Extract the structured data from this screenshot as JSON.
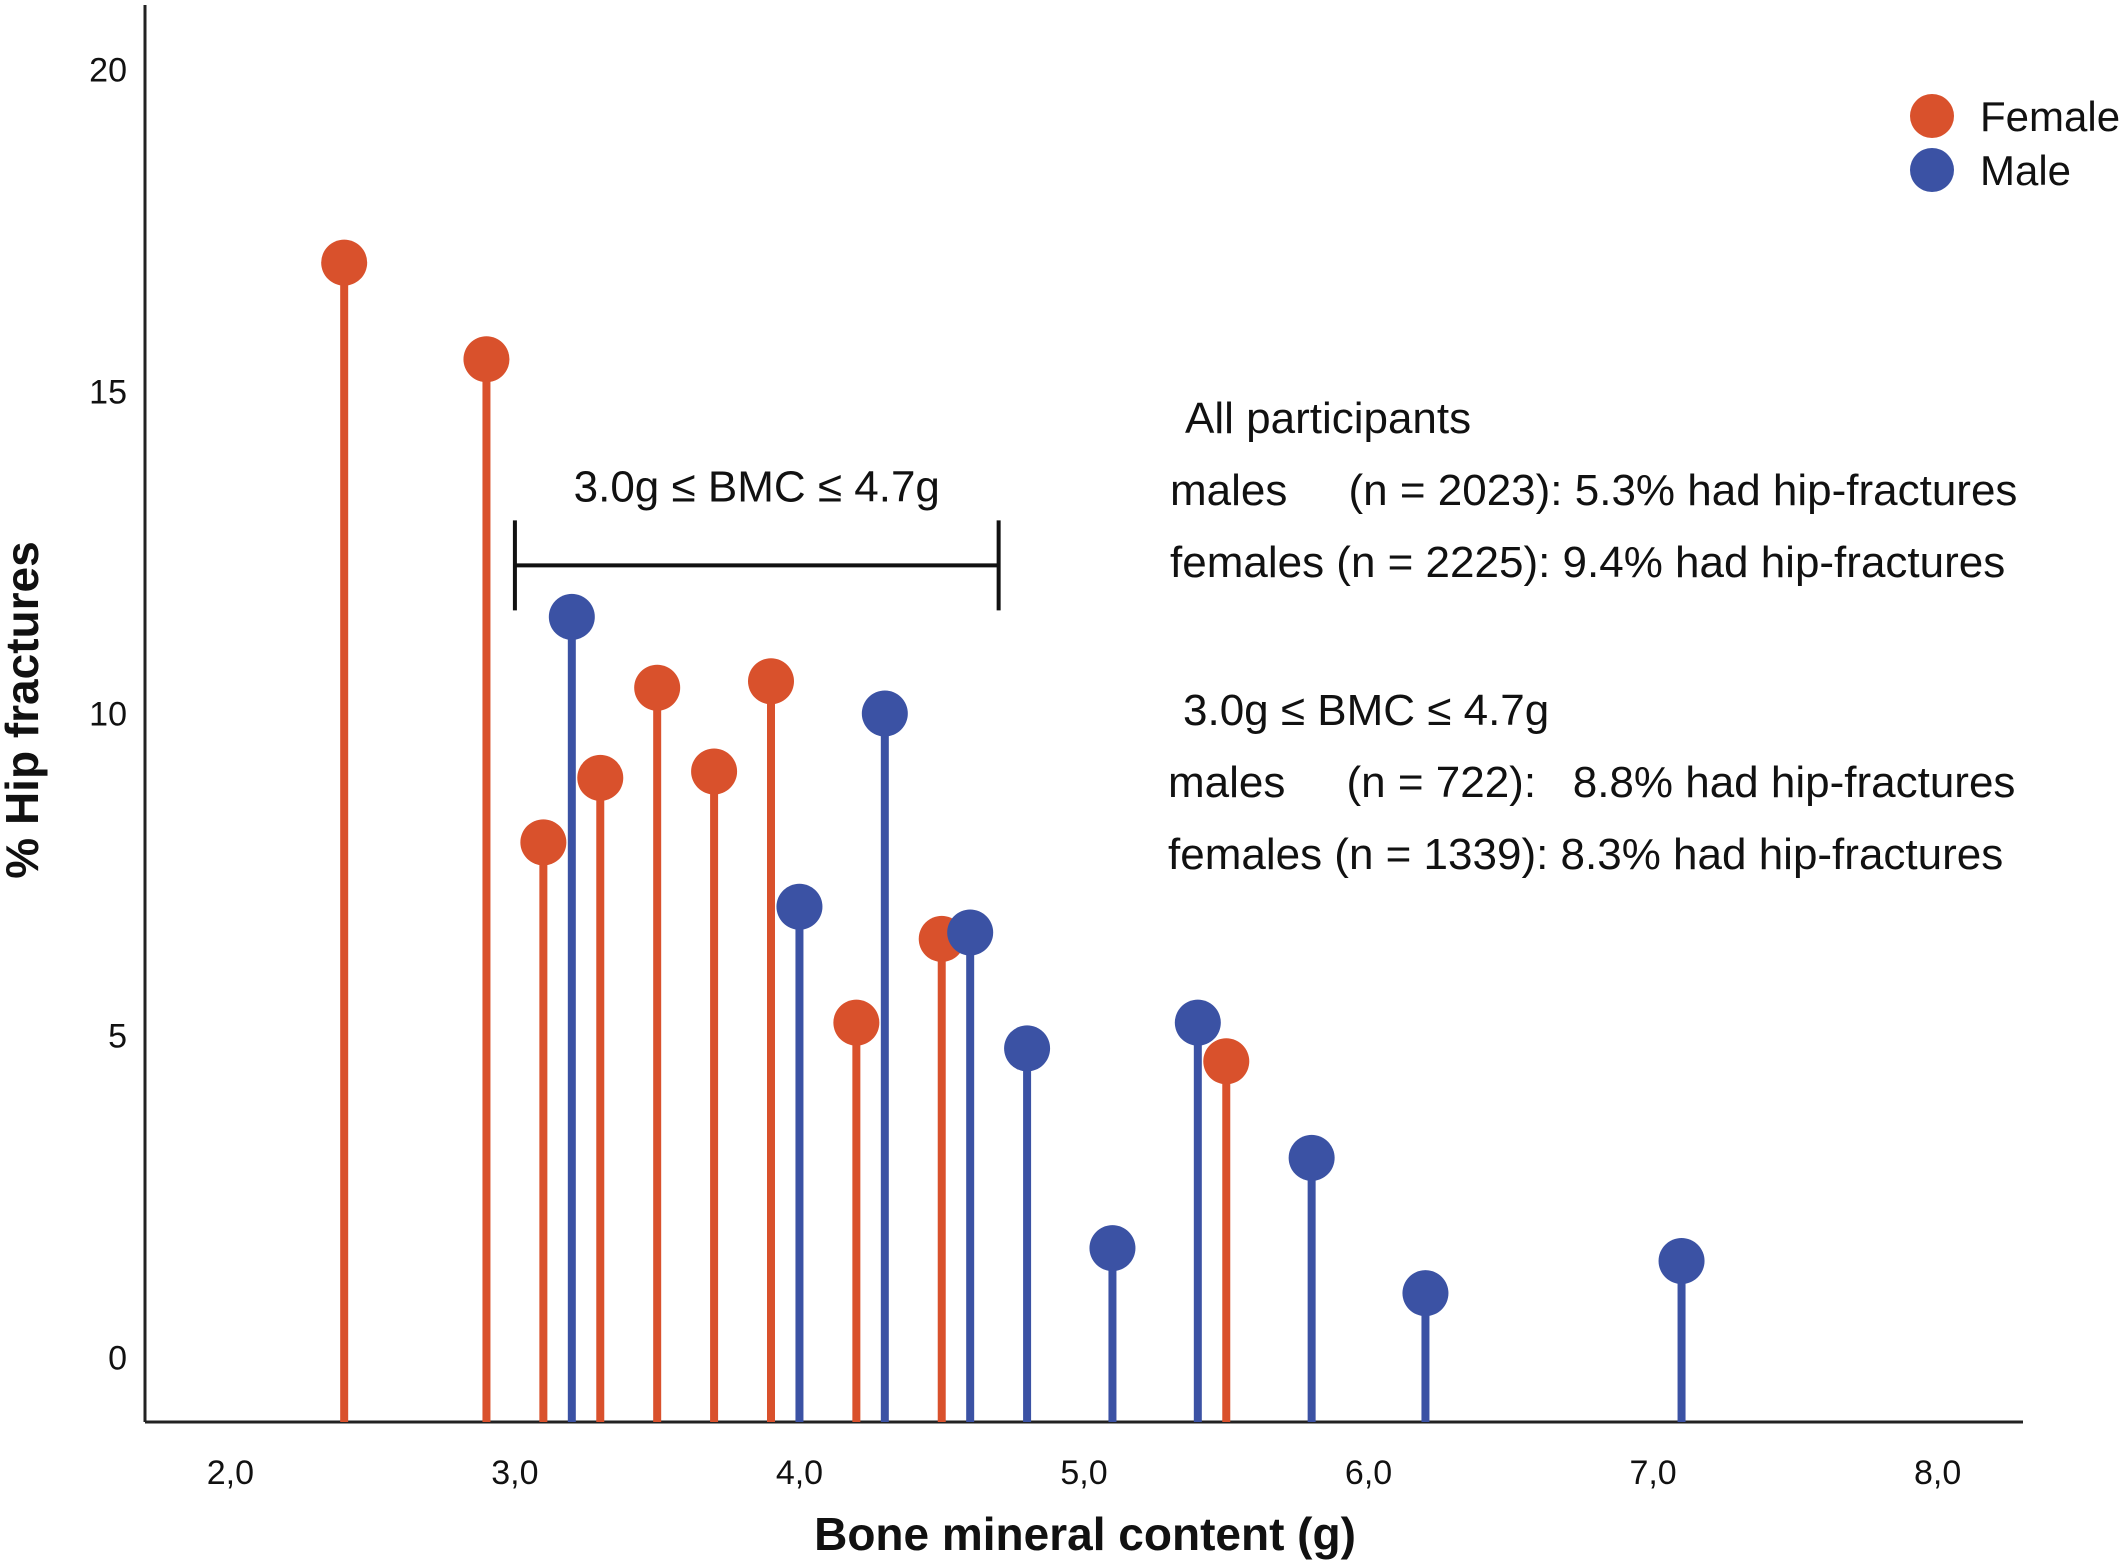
{
  "chart_data": {
    "type": "lollipop",
    "xlabel": "Bone mineral content (g)",
    "ylabel": "% Hip fractures",
    "xlim": [
      1.7,
      8.3
    ],
    "ylim": [
      -1,
      21
    ],
    "x_ticks": [
      2,
      3,
      4,
      5,
      6,
      7,
      8
    ],
    "x_tick_labels": [
      "2,0",
      "3,0",
      "4,0",
      "5,0",
      "6,0",
      "7,0",
      "8,0"
    ],
    "y_ticks": [
      0,
      5,
      10,
      15,
      20
    ],
    "y_tick_labels": [
      "0",
      "5",
      "10",
      "15",
      "20"
    ],
    "grid": false,
    "legend_position": "top-right",
    "colors": {
      "Female": "#d9512c",
      "Male": "#3b52a4"
    },
    "series": [
      {
        "name": "Female",
        "x": [
          2.4,
          2.9,
          3.1,
          3.3,
          3.5,
          3.7,
          3.9,
          4.2,
          4.5,
          5.5
        ],
        "y": [
          17.0,
          15.5,
          8.0,
          9.0,
          10.4,
          9.1,
          10.5,
          5.2,
          6.5,
          4.6
        ]
      },
      {
        "name": "Male",
        "x": [
          3.2,
          4.0,
          4.3,
          4.6,
          4.8,
          5.1,
          5.4,
          5.8,
          6.2,
          7.1
        ],
        "y": [
          11.5,
          7.0,
          10.0,
          6.6,
          4.8,
          1.7,
          5.2,
          3.1,
          1.0,
          1.5
        ]
      }
    ],
    "bracket": {
      "x_start": 3.0,
      "x_end": 4.7,
      "y": 12.3,
      "label": "3.0g ≤ BMC ≤ 4.7g"
    },
    "annotations": [
      "All participants",
      "males     (n = 2023): 5.3% had hip-fractures",
      "females (n = 2225): 9.4% had hip-fractures",
      "3.0g ≤ BMC ≤ 4.7g",
      "males     (n = 722):   8.8% had hip-fractures",
      "females (n = 1339): 8.3% had hip-fractures"
    ]
  }
}
